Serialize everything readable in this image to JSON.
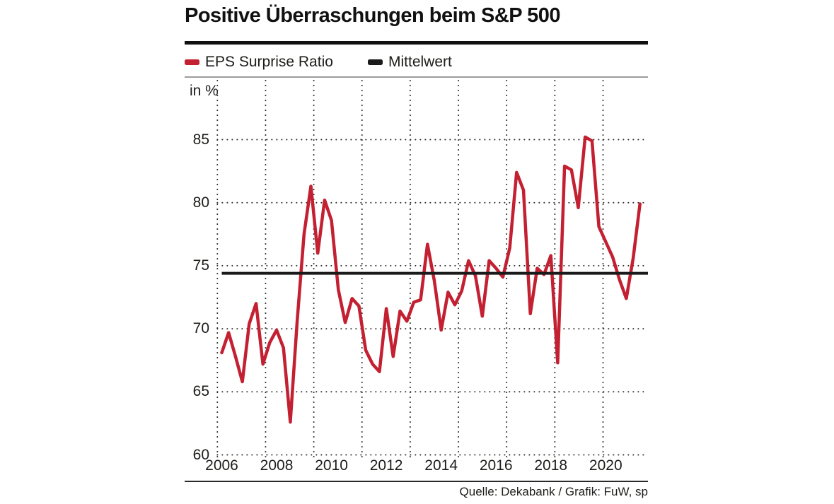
{
  "header": {
    "title": "Positive Überraschungen beim S&P 500",
    "legend": [
      {
        "label": "EPS Surprise Ratio",
        "color": "#c32032"
      },
      {
        "label": "Mittelwert",
        "color": "#1a1a1a"
      }
    ]
  },
  "chart_data": {
    "type": "line",
    "title": "Positive Überraschungen beim S&P 500",
    "ylabel": "in %",
    "unit_label": "in %",
    "ylim": [
      60,
      89.7
    ],
    "xlim": [
      2005.85,
      2021.55
    ],
    "y_ticks": [
      60,
      65,
      70,
      75,
      80,
      85
    ],
    "x_tick_years": [
      2006,
      2008,
      2010,
      2012,
      2014,
      2016,
      2018,
      2020
    ],
    "x_tick_labels": [
      "2006",
      "2008",
      "2010",
      "2012",
      "2014",
      "2016",
      "2018",
      "2020"
    ],
    "grid": "dotted",
    "legend_position": "top",
    "series": [
      {
        "name": "EPS Surprise Ratio",
        "color": "#c32032",
        "x_start": 2006.0,
        "x_step": 0.25,
        "x_unit": "quarter",
        "values": [
          68.1,
          69.7,
          67.8,
          65.8,
          70.4,
          72.0,
          67.2,
          68.9,
          69.9,
          68.5,
          62.6,
          70.6,
          77.5,
          81.3,
          76.0,
          80.2,
          78.6,
          73.1,
          70.5,
          72.4,
          71.8,
          68.3,
          67.2,
          66.6,
          71.6,
          67.8,
          71.4,
          70.6,
          72.1,
          72.3,
          76.7,
          73.8,
          69.9,
          72.9,
          71.9,
          73.0,
          75.4,
          74.2,
          71.0,
          75.4,
          74.8,
          74.1,
          76.4,
          82.4,
          81.0,
          71.2,
          74.8,
          74.3,
          75.8,
          67.3,
          82.9,
          82.6,
          79.6,
          85.2,
          84.9,
          78.1,
          76.9,
          75.7,
          73.9,
          72.4,
          75.6,
          79.9
        ]
      },
      {
        "name": "Mittelwert",
        "type": "hline",
        "color": "#1a1a1a",
        "value": 74.4
      }
    ]
  },
  "source": "Quelle: Dekabank / Grafik: FuW, sp"
}
